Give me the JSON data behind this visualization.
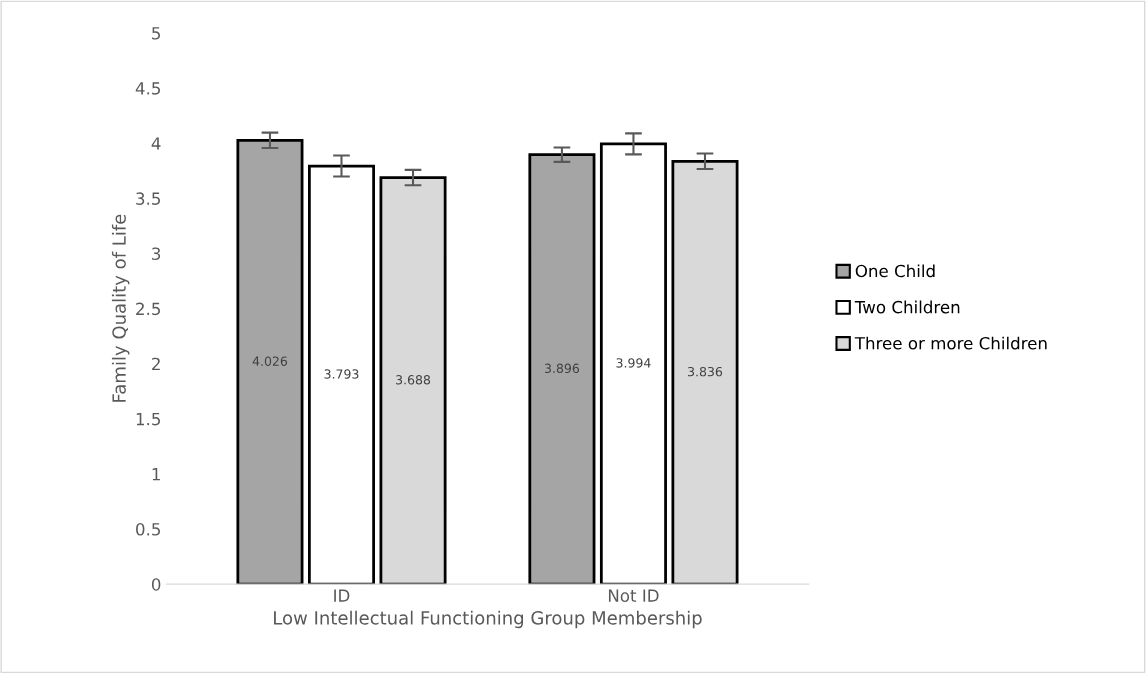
{
  "chart_data": {
    "type": "bar",
    "xlabel": "Low Intellectual Functioning Group Membership",
    "ylabel": "Family Quality of Life",
    "categories": [
      "ID",
      "Not ID"
    ],
    "series": [
      {
        "name": "One Child",
        "color": "#a5a5a5",
        "values": [
          4.026,
          3.896
        ],
        "errors": [
          0.07,
          0.065
        ]
      },
      {
        "name": "Two Children",
        "color": "#ffffff",
        "values": [
          3.793,
          3.994
        ],
        "errors": [
          0.095,
          0.095
        ]
      },
      {
        "name": "Three or more Children",
        "color": "#d9d9d9",
        "values": [
          3.688,
          3.836
        ],
        "errors": [
          0.07,
          0.07
        ]
      }
    ],
    "ylim": [
      0,
      5
    ],
    "yticks": [
      0,
      0.5,
      1,
      1.5,
      2,
      2.5,
      3,
      3.5,
      4,
      4.5,
      5
    ],
    "data_labels": true,
    "grid": false,
    "legend": "right"
  }
}
